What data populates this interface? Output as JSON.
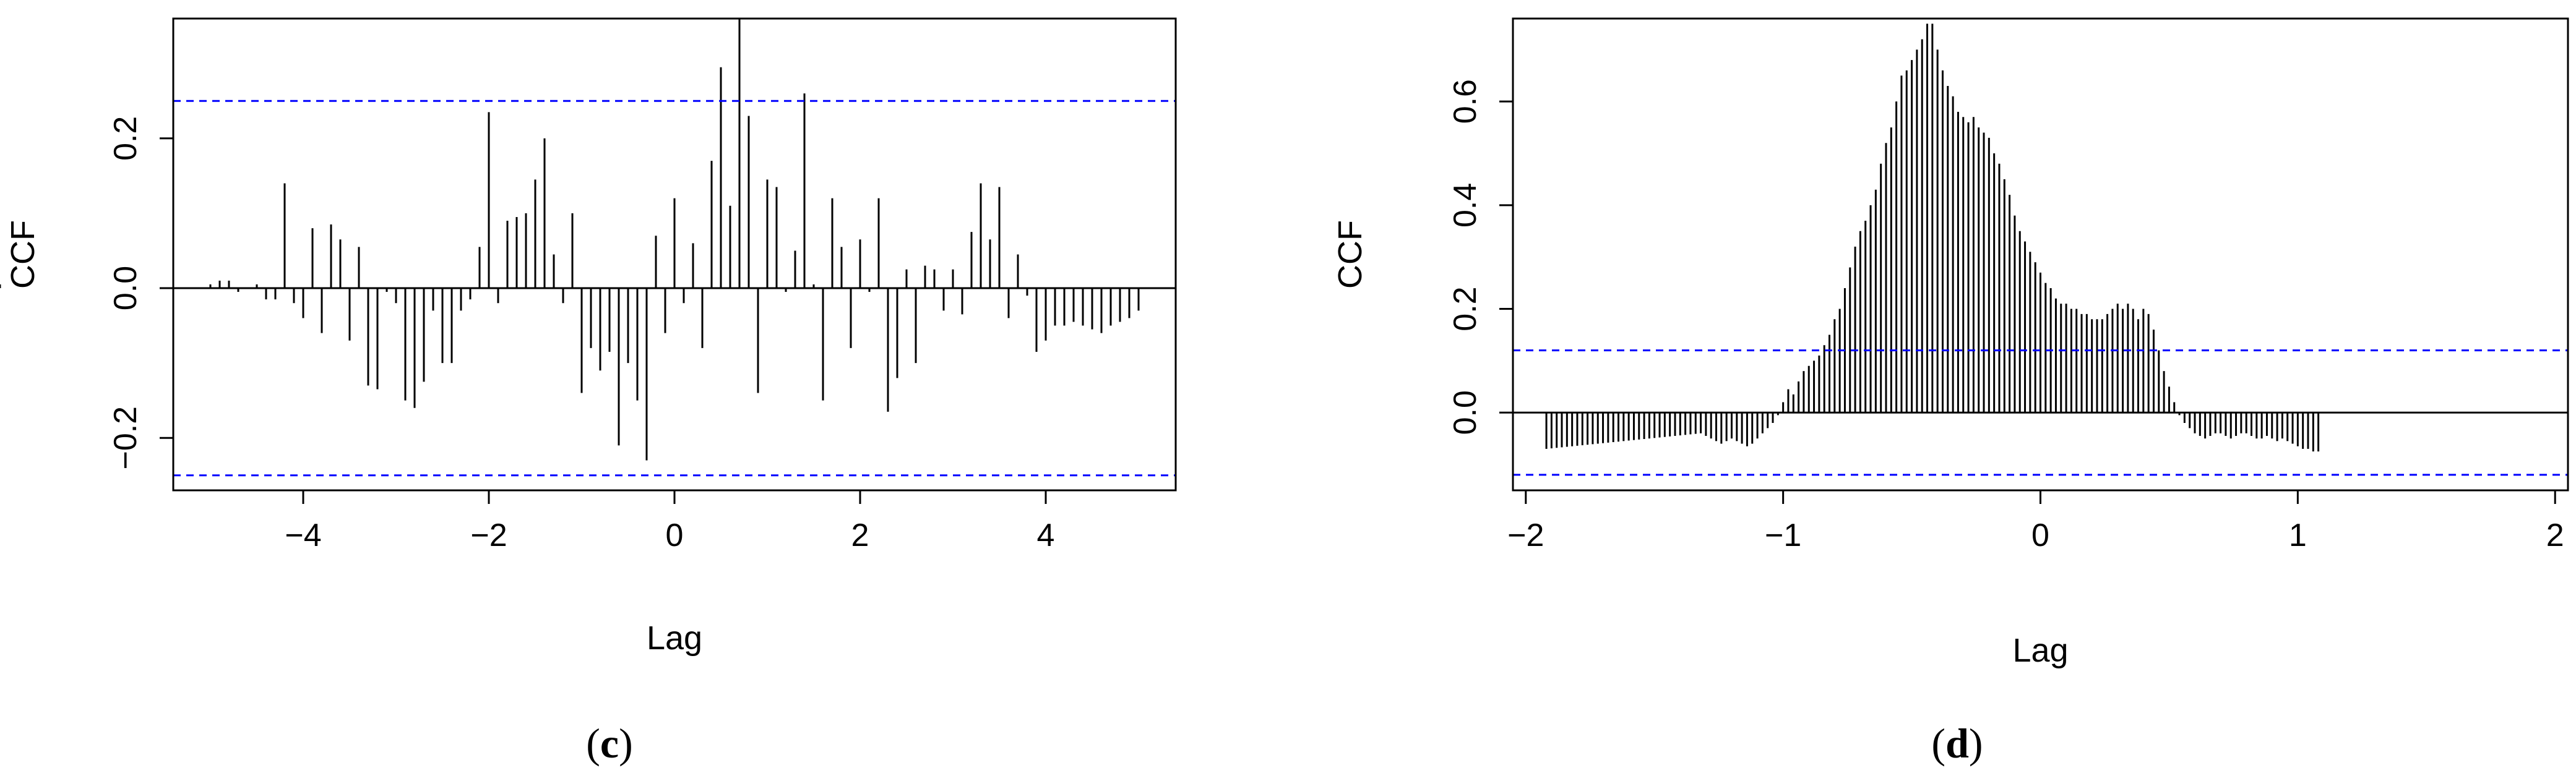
{
  "chart_data": [
    {
      "type": "bar",
      "panel": "(c)",
      "caption_letter": "c",
      "xlabel": "Lag",
      "ylabel": "CCF",
      "xlim": [
        -5.4,
        5.4
      ],
      "ylim": [
        -0.27,
        0.36
      ],
      "x_ticks": [
        -4,
        -2,
        0,
        2,
        4
      ],
      "x_tick_labels": [
        "−4",
        "−2",
        "0",
        "2",
        "4"
      ],
      "y_ticks": [
        -0.2,
        0.0,
        0.2
      ],
      "y_tick_labels": [
        "−0.2",
        "0.0",
        "0.2"
      ],
      "confidence_bounds": [
        0.25,
        -0.25
      ],
      "bounds_color": "#0000ff",
      "bar_color": "#000000",
      "grid": false,
      "lags": [
        -5.0,
        -4.9,
        -4.8,
        -4.7,
        -4.6,
        -4.5,
        -4.4,
        -4.3,
        -4.2,
        -4.1,
        -4.0,
        -3.9,
        -3.8,
        -3.7,
        -3.6,
        -3.5,
        -3.4,
        -3.3,
        -3.2,
        -3.1,
        -3.0,
        -2.9,
        -2.8,
        -2.7,
        -2.6,
        -2.5,
        -2.4,
        -2.3,
        -2.2,
        -2.1,
        -2.0,
        -1.9,
        -1.8,
        -1.7,
        -1.6,
        -1.5,
        -1.4,
        -1.3,
        -1.2,
        -1.1,
        -1.0,
        -0.9,
        -0.8,
        -0.7,
        -0.6,
        -0.5,
        -0.4,
        -0.3,
        -0.2,
        -0.1,
        0.0,
        0.1,
        0.2,
        0.3,
        0.4,
        0.5,
        0.6,
        0.7,
        0.8,
        0.9,
        1.0,
        1.1,
        1.2,
        1.3,
        1.4,
        1.5,
        1.6,
        1.7,
        1.8,
        1.9,
        2.0,
        2.1,
        2.2,
        2.3,
        2.4,
        2.5,
        2.6,
        2.7,
        2.8,
        2.9,
        3.0,
        3.1,
        3.2,
        3.3,
        3.4,
        3.5,
        3.6,
        3.7,
        3.8,
        3.9,
        4.0,
        4.1,
        4.2,
        4.3,
        4.4,
        4.5,
        4.6,
        4.7,
        4.8,
        4.9,
        5.0
      ],
      "values": [
        0.005,
        0.01,
        0.01,
        -0.005,
        0.0,
        0.005,
        -0.015,
        -0.015,
        0.14,
        -0.02,
        -0.04,
        0.08,
        -0.06,
        0.085,
        0.065,
        -0.07,
        0.055,
        -0.13,
        -0.135,
        -0.005,
        -0.02,
        -0.15,
        -0.16,
        -0.125,
        -0.03,
        -0.1,
        -0.1,
        -0.03,
        -0.015,
        0.055,
        0.235,
        -0.02,
        0.09,
        0.095,
        0.1,
        0.145,
        0.2,
        0.045,
        -0.02,
        0.1,
        -0.14,
        -0.08,
        -0.11,
        -0.085,
        -0.21,
        -0.1,
        -0.15,
        -0.23,
        0.07,
        -0.06,
        0.12,
        -0.02,
        0.06,
        -0.08,
        0.17,
        0.295,
        0.11,
        0.36,
        0.23,
        -0.14,
        0.145,
        0.135,
        -0.005,
        0.05,
        0.26,
        0.005,
        -0.15,
        0.12,
        0.055,
        -0.08,
        0.065,
        -0.005,
        0.12,
        -0.165,
        -0.12,
        0.025,
        -0.1,
        0.03,
        0.025,
        -0.03,
        0.025,
        -0.035,
        0.075,
        0.14,
        0.065,
        0.135,
        -0.04,
        0.045,
        -0.01,
        -0.085,
        -0.07,
        -0.05,
        -0.05,
        -0.045,
        -0.05,
        -0.055,
        -0.06,
        -0.05,
        -0.045,
        -0.04,
        -0.03,
        0.0,
        0.005
      ]
    },
    {
      "type": "bar",
      "panel": "(d)",
      "caption_letter": "d",
      "xlabel": "Lag",
      "ylabel": "CCF",
      "xlim": [
        -2.05,
        2.05
      ],
      "ylim": [
        -0.15,
        0.76
      ],
      "x_ticks": [
        -2,
        -1,
        0,
        1,
        2
      ],
      "x_tick_labels": [
        "−2",
        "−1",
        "0",
        "1",
        "2"
      ],
      "y_ticks": [
        0.0,
        0.2,
        0.4,
        0.6
      ],
      "y_tick_labels": [
        "0.0",
        "0.2",
        "0.4",
        "0.6"
      ],
      "confidence_bounds": [
        0.12,
        -0.12
      ],
      "bounds_color": "#0000ff",
      "bar_color": "#000000",
      "grid": false,
      "lag_start": -1.92,
      "lag_step": 0.02,
      "values": [
        -0.07,
        -0.069,
        -0.068,
        -0.067,
        -0.066,
        -0.065,
        -0.064,
        -0.063,
        -0.062,
        -0.061,
        -0.06,
        -0.059,
        -0.058,
        -0.057,
        -0.056,
        -0.055,
        -0.054,
        -0.053,
        -0.052,
        -0.051,
        -0.05,
        -0.049,
        -0.048,
        -0.047,
        -0.046,
        -0.045,
        -0.044,
        -0.043,
        -0.042,
        -0.041,
        -0.04,
        -0.045,
        -0.05,
        -0.055,
        -0.06,
        -0.055,
        -0.05,
        -0.055,
        -0.06,
        -0.065,
        -0.06,
        -0.05,
        -0.04,
        -0.03,
        -0.02,
        -0.005,
        0.02,
        0.045,
        0.035,
        0.06,
        0.08,
        0.09,
        0.1,
        0.11,
        0.13,
        0.15,
        0.18,
        0.2,
        0.24,
        0.28,
        0.32,
        0.35,
        0.37,
        0.4,
        0.43,
        0.48,
        0.52,
        0.55,
        0.6,
        0.65,
        0.66,
        0.68,
        0.7,
        0.72,
        0.75,
        0.75,
        0.7,
        0.66,
        0.63,
        0.61,
        0.58,
        0.57,
        0.56,
        0.57,
        0.55,
        0.54,
        0.53,
        0.5,
        0.48,
        0.45,
        0.42,
        0.38,
        0.35,
        0.33,
        0.31,
        0.29,
        0.27,
        0.25,
        0.24,
        0.22,
        0.21,
        0.21,
        0.2,
        0.2,
        0.19,
        0.19,
        0.18,
        0.18,
        0.18,
        0.19,
        0.2,
        0.21,
        0.2,
        0.21,
        0.2,
        0.18,
        0.2,
        0.19,
        0.16,
        0.12,
        0.08,
        0.05,
        0.02,
        -0.005,
        -0.02,
        -0.03,
        -0.04,
        -0.045,
        -0.05,
        -0.045,
        -0.04,
        -0.04,
        -0.045,
        -0.05,
        -0.045,
        -0.04,
        -0.04,
        -0.045,
        -0.05,
        -0.05,
        -0.045,
        -0.05,
        -0.055,
        -0.05,
        -0.055,
        -0.06,
        -0.065,
        -0.07,
        -0.07,
        -0.075,
        -0.075
      ]
    }
  ]
}
